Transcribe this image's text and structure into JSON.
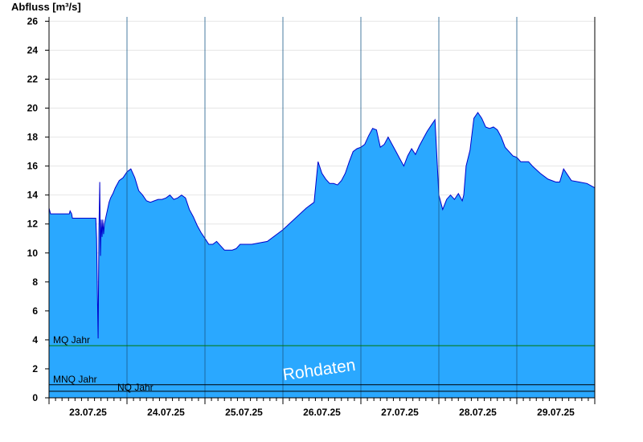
{
  "chart_data": {
    "type": "area",
    "title": "",
    "ylabel": "Abfluss [m³/s]",
    "xlabel": "",
    "ylim": [
      0,
      26.3
    ],
    "yticks": [
      0,
      2,
      4,
      6,
      8,
      10,
      12,
      14,
      16,
      18,
      20,
      22,
      24,
      26
    ],
    "y_tick_labels": [
      "0",
      "2",
      "4",
      "6",
      "8",
      "10",
      "12",
      "14",
      "16",
      "18",
      "20",
      "22",
      "24",
      "26"
    ],
    "xlim": [
      0,
      7
    ],
    "x_unit": "days from start of 23.07.25",
    "x_tick_labels": [
      "23.07.25",
      "24.07.25",
      "25.07.25",
      "26.07.25",
      "27.07.25",
      "28.07.25",
      "29.07.25"
    ],
    "grid": true,
    "series": [
      {
        "x": [
          0,
          0.02,
          0.25,
          0.26,
          0.27,
          0.29,
          0.3,
          0.6,
          0.61,
          0.62,
          0.63,
          0.64,
          0.65,
          0.66,
          0.67,
          0.68,
          0.69,
          0.7,
          0.71,
          0.73,
          0.75,
          0.77,
          0.79,
          0.82,
          0.85,
          0.9,
          0.95,
          1.0,
          1.05,
          1.1,
          1.15,
          1.2,
          1.25,
          1.3,
          1.35,
          1.4,
          1.45,
          1.5,
          1.55,
          1.6,
          1.65,
          1.7,
          1.75,
          1.8,
          1.85,
          1.9,
          1.95,
          2.0,
          2.05,
          2.1,
          2.15,
          2.2,
          2.25,
          2.3,
          2.35,
          2.4,
          2.45,
          2.5,
          2.55,
          2.6,
          2.8,
          3.0,
          3.2,
          3.3,
          3.35,
          3.4,
          3.45,
          3.5,
          3.55,
          3.6,
          3.65,
          3.7,
          3.75,
          3.8,
          3.85,
          3.9,
          3.95,
          4.0,
          4.05,
          4.1,
          4.15,
          4.2,
          4.25,
          4.3,
          4.35,
          4.4,
          4.45,
          4.5,
          4.55,
          4.6,
          4.65,
          4.7,
          4.75,
          4.8,
          4.85,
          4.9,
          4.95,
          5.0,
          5.05,
          5.1,
          5.15,
          5.2,
          5.25,
          5.3,
          5.32,
          5.35,
          5.4,
          5.45,
          5.5,
          5.55,
          5.6,
          5.65,
          5.7,
          5.75,
          5.8,
          5.85,
          5.9,
          5.95,
          6.0,
          6.05,
          6.1,
          6.15,
          6.2,
          6.3,
          6.4,
          6.5,
          6.55,
          6.6,
          6.7,
          6.8,
          6.9,
          7.0
        ],
        "y": [
          13.1,
          12.7,
          12.7,
          12.7,
          12.9,
          12.7,
          12.4,
          12.4,
          11.0,
          7.5,
          4.1,
          11.6,
          14.9,
          9.8,
          12.3,
          11.1,
          12.3,
          11.3,
          12.0,
          12.5,
          13.0,
          13.5,
          13.8,
          14.1,
          14.5,
          15.0,
          15.2,
          15.6,
          15.8,
          15.2,
          14.3,
          14.0,
          13.6,
          13.5,
          13.6,
          13.7,
          13.7,
          13.8,
          14.0,
          13.7,
          13.8,
          14.0,
          13.8,
          13.0,
          12.5,
          11.9,
          11.4,
          11.0,
          10.6,
          10.6,
          10.8,
          10.5,
          10.2,
          10.2,
          10.2,
          10.3,
          10.6,
          10.6,
          10.6,
          10.6,
          10.8,
          11.6,
          12.6,
          13.1,
          13.3,
          13.5,
          16.3,
          15.5,
          15.1,
          14.8,
          14.8,
          14.7,
          15.0,
          15.5,
          16.3,
          17.0,
          17.2,
          17.3,
          17.5,
          18.1,
          18.6,
          18.5,
          17.3,
          17.5,
          18.0,
          17.5,
          17.0,
          16.5,
          16.0,
          16.7,
          17.2,
          16.8,
          17.4,
          17.9,
          18.4,
          18.8,
          19.2,
          14.0,
          13.0,
          13.7,
          14.0,
          13.7,
          14.1,
          13.6,
          14.0,
          16.0,
          17.1,
          19.3,
          19.7,
          19.3,
          18.7,
          18.6,
          18.7,
          18.5,
          18.0,
          17.3,
          17.0,
          16.7,
          16.6,
          16.3,
          16.3,
          16.3,
          16.0,
          15.5,
          15.1,
          14.9,
          14.9,
          15.8,
          15.0,
          14.9,
          14.8,
          14.5
        ],
        "color": "#2aa8ff",
        "line_color": "#0000cc"
      }
    ],
    "reference_lines": [
      {
        "label": "MQ Jahr",
        "value": 3.6,
        "color": "#007700"
      },
      {
        "label": "MNQ Jahr",
        "value": 0.9,
        "color": "#000000"
      },
      {
        "label": "NQ Jahr",
        "value": 0.45,
        "color": "#000000"
      }
    ],
    "watermark": "Rohdaten"
  }
}
